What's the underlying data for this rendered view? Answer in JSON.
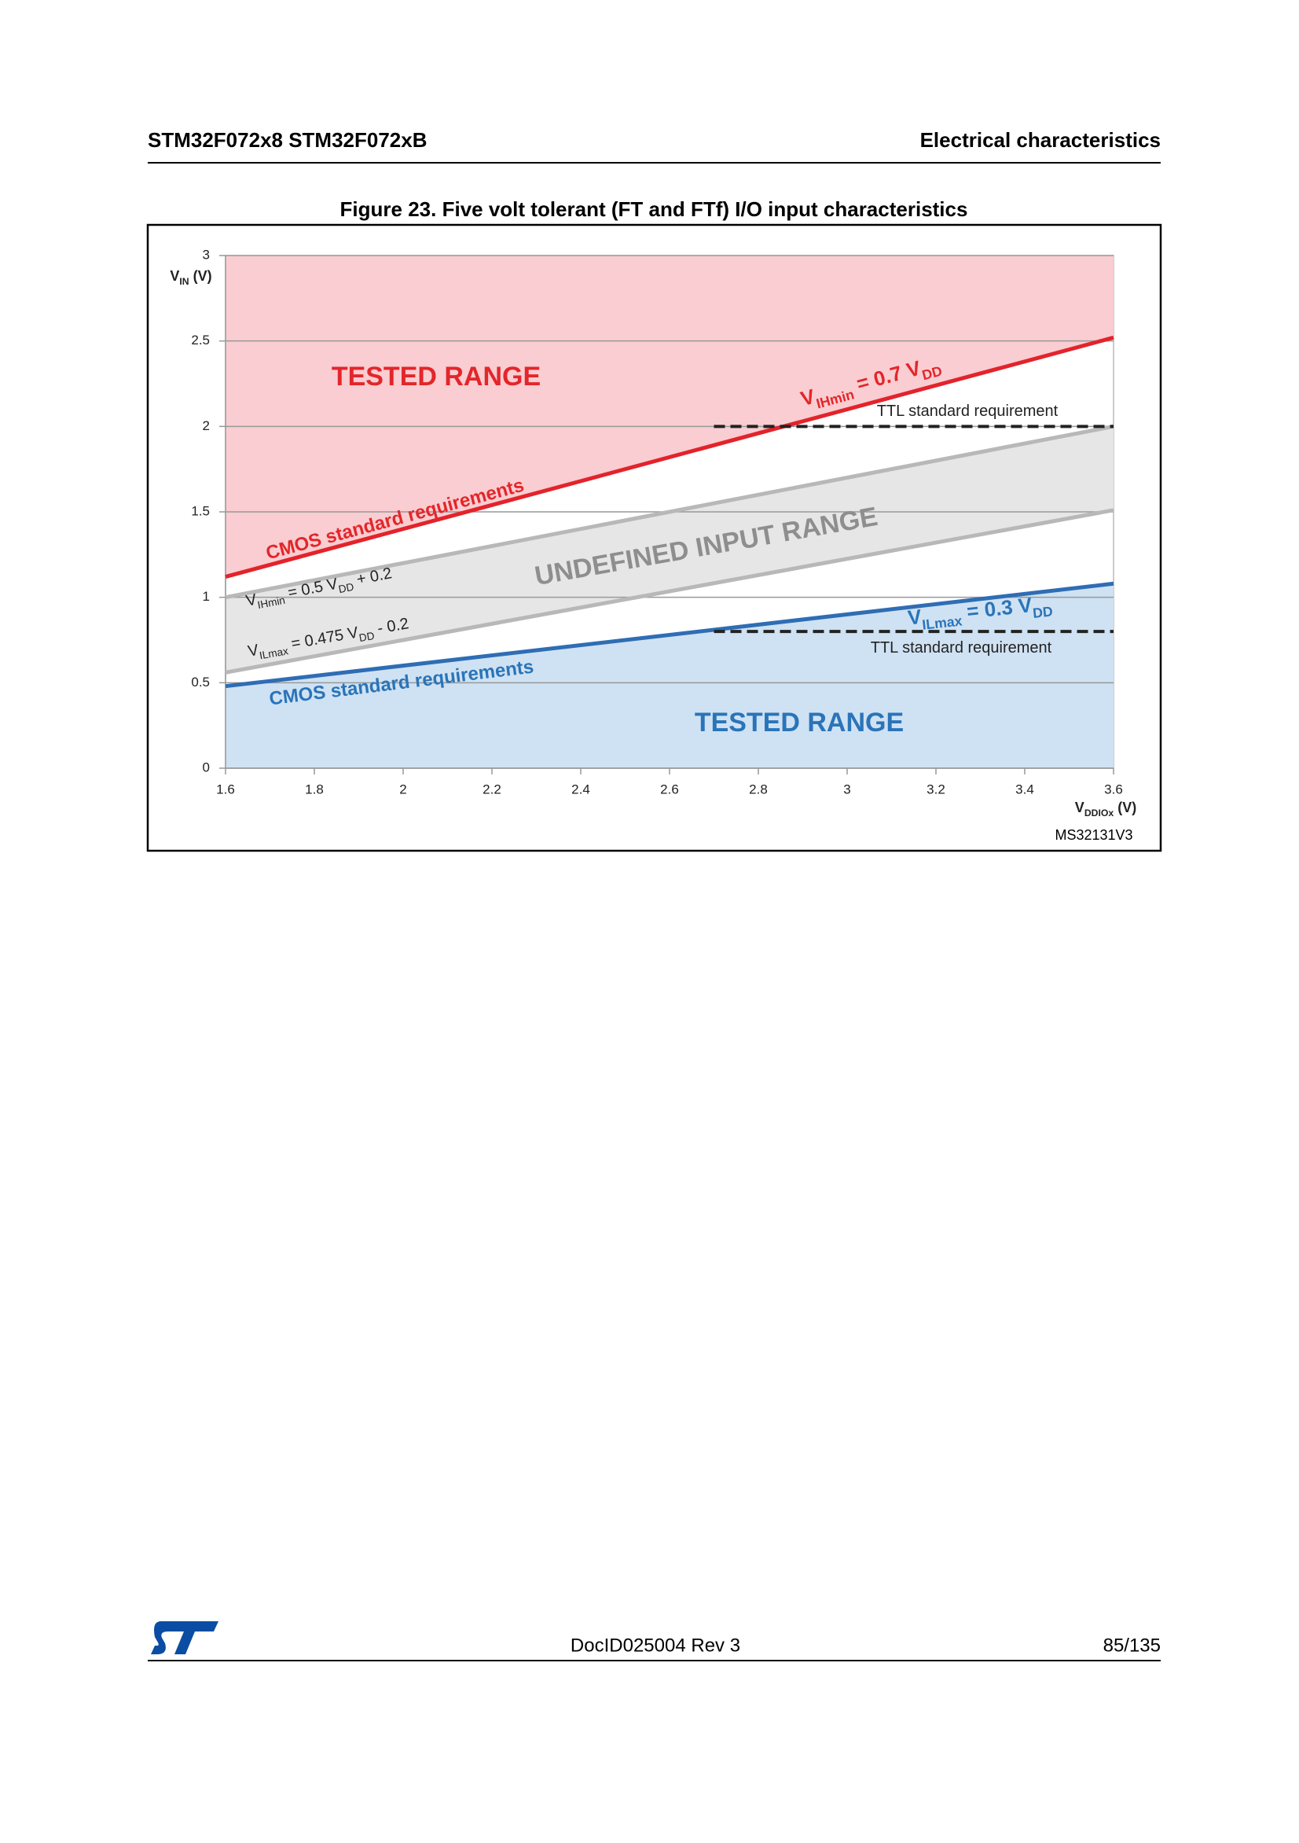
{
  "header": {
    "left": "STM32F072x8 STM32F072xB",
    "right": "Electrical characteristics"
  },
  "figure": {
    "caption": "Figure 23. Five volt tolerant (FT and FTf) I/O input characteristics",
    "code": "MS32131V3"
  },
  "chart_data": {
    "type": "line",
    "y_label": [
      "V",
      "IN",
      " (V)"
    ],
    "x_label": [
      "V",
      "DDIOx",
      " (V)"
    ],
    "xlim": [
      1.6,
      3.6
    ],
    "xticks": [
      1.6,
      1.8,
      2,
      2.2,
      2.4,
      2.6,
      2.8,
      3,
      3.2,
      3.4,
      3.6
    ],
    "ylim": [
      0,
      3
    ],
    "yticks": [
      0,
      0.5,
      1,
      1.5,
      2,
      2.5,
      3
    ],
    "grid": true,
    "series": [
      {
        "color": "#e3232b",
        "x": [
          1.6,
          3.6
        ],
        "values": [
          1.12,
          2.52
        ],
        "fill": "above",
        "fill_color": "#f9cdd1"
      },
      {
        "color": "#2f6db4",
        "x": [
          1.6,
          3.6
        ],
        "values": [
          0.48,
          1.08
        ],
        "fill": "below",
        "fill_color": "#cfe2f3"
      },
      {
        "color": "#b8b8b8",
        "x": [
          1.6,
          3.6
        ],
        "values": [
          1.0,
          2.0
        ],
        "fill": "to_next",
        "fill_color": "#e6e6e6"
      },
      {
        "color": "#b8b8b8",
        "x": [
          1.6,
          3.6
        ],
        "values": [
          0.56,
          1.51
        ]
      },
      {
        "color": "#222222",
        "dash": true,
        "x": [
          2.7,
          3.6
        ],
        "values": [
          2,
          2
        ]
      },
      {
        "color": "#222222",
        "dash": true,
        "x": [
          2.7,
          3.6
        ],
        "values": [
          0.8,
          0.8
        ]
      }
    ],
    "annotations": [
      {
        "text": [
          "TESTED RANGE"
        ],
        "color": "#e3262a"
      },
      {
        "text": [
          "CMOS standard requirements"
        ],
        "color": "#e3262a"
      },
      {
        "text": [
          "V",
          "IHmin",
          " = 0.7 V",
          "DD"
        ],
        "color": "#e3262a"
      },
      {
        "text": [
          "TTL standard requirement"
        ],
        "color": "#222222"
      },
      {
        "text": [
          "UNDEFINED INPUT RANGE"
        ],
        "color": "#8e8e8e"
      },
      {
        "text": [
          "V",
          "IHmin",
          " = 0.5 V",
          "DD",
          " + 0.2"
        ],
        "color": "#222222"
      },
      {
        "text": [
          "V",
          "ILmax",
          " = 0.475 V",
          "DD",
          " - 0.2"
        ],
        "color": "#222222"
      },
      {
        "text": [
          "V",
          "ILmax",
          " = 0.3 V",
          "DD"
        ],
        "color": "#2a74b9"
      },
      {
        "text": [
          "TTL standard requirement"
        ],
        "color": "#222222"
      },
      {
        "text": [
          "CMOS standard requirements"
        ],
        "color": "#2a74b9"
      },
      {
        "text": [
          "TESTED RANGE"
        ],
        "color": "#2a74b9"
      }
    ]
  },
  "footer": {
    "doc_id": "DocID025004 Rev 3",
    "page": "85/135"
  }
}
